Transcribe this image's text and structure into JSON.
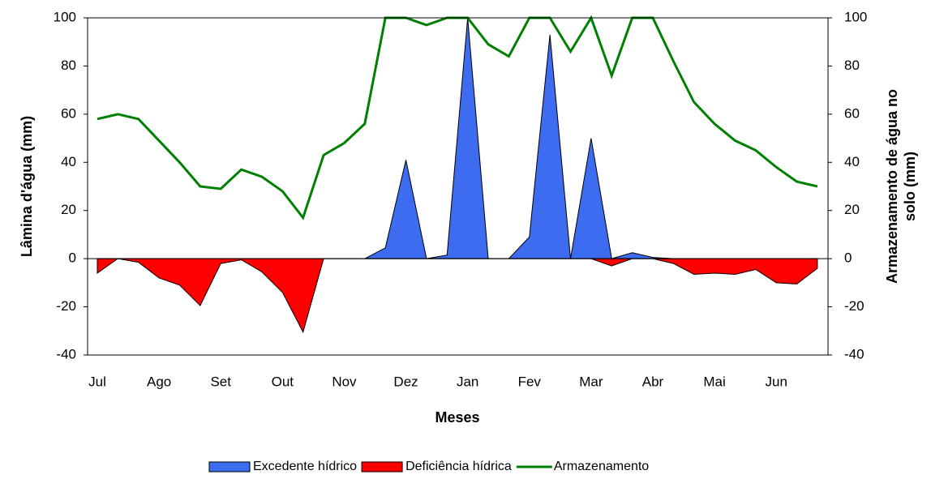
{
  "chart_data": {
    "type": "area",
    "xlabel": "Meses",
    "ylabel": "Lâmina d'água (mm)",
    "y2label": "Armazenamento de água no solo (mm)",
    "categories": [
      "Jul",
      null,
      null,
      "Ago",
      null,
      null,
      "Set",
      null,
      null,
      "Out",
      null,
      null,
      "Nov",
      null,
      null,
      "Dez",
      null,
      null,
      "Jan",
      null,
      null,
      "Fev",
      null,
      null,
      "Mar",
      null,
      null,
      "Abr",
      null,
      null,
      "Mai",
      null,
      null,
      "Jun",
      null,
      null
    ],
    "ylim": [
      -40,
      100
    ],
    "yticks": [
      -40,
      -20,
      0,
      20,
      40,
      60,
      80,
      100
    ],
    "y2lim": [
      -40,
      100
    ],
    "y2ticks": [
      -40,
      -20,
      0,
      20,
      40,
      60,
      80,
      100
    ],
    "series": [
      {
        "name": "Excedente hídrico",
        "color": "#3d6cf0",
        "kind": "area",
        "values": [
          0,
          0,
          0,
          0,
          0,
          0,
          0,
          0,
          0,
          0,
          0,
          0,
          0,
          0,
          4.5,
          41,
          0,
          1.5,
          100,
          0,
          0,
          9,
          93,
          0,
          50,
          0,
          2.5,
          0.5,
          0,
          0,
          0,
          0,
          0,
          0,
          0,
          0
        ]
      },
      {
        "name": "Deficiência hídrica",
        "color": "#ff0000",
        "kind": "area",
        "values": [
          -6,
          0,
          -1.5,
          -8,
          -11,
          -19.5,
          -2,
          -0.5,
          -5.5,
          -14,
          -30.5,
          0,
          0,
          0,
          0,
          0,
          0,
          0,
          0,
          0,
          0,
          0,
          0,
          0,
          0,
          -3,
          0,
          0,
          -2,
          -6.5,
          -6,
          -6.5,
          -4.5,
          -10,
          -10.5,
          -4
        ]
      },
      {
        "name": "Armazenamento",
        "color": "#008000",
        "kind": "line",
        "axis": "y2",
        "values": [
          58,
          60,
          58,
          49,
          40,
          30,
          29,
          37,
          34,
          28,
          17,
          43,
          48,
          56,
          100,
          100,
          97,
          100,
          100,
          89,
          84,
          100,
          100,
          86,
          100,
          76,
          100,
          100,
          82,
          65,
          56,
          49,
          45,
          38,
          32,
          30
        ]
      }
    ]
  }
}
